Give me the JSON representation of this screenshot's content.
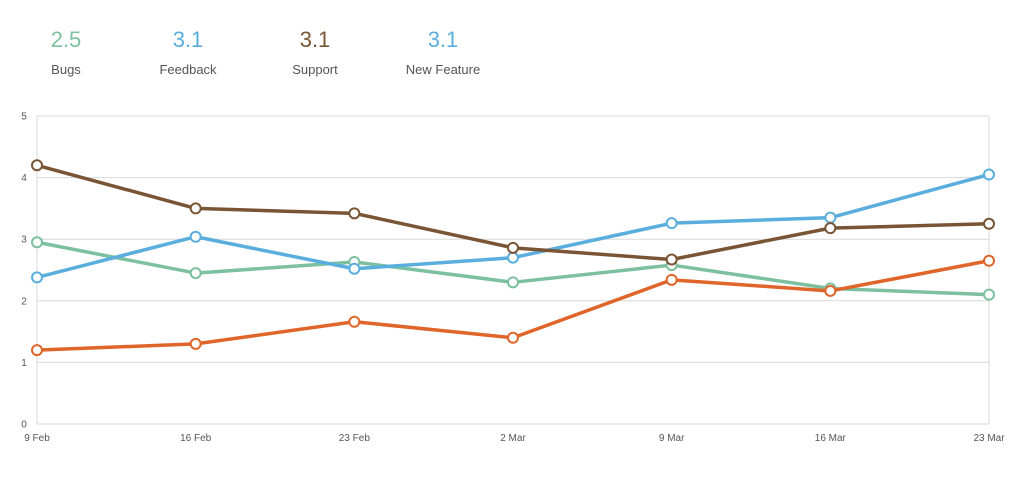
{
  "summary": [
    {
      "value": "2.5",
      "label": "Bugs",
      "color": "#7dc0a0"
    },
    {
      "value": "3.1",
      "label": "Feedback",
      "color": "#5aaedd"
    },
    {
      "value": "3.1",
      "label": "Support",
      "color": "#7a5535"
    },
    {
      "value": "3.1",
      "label": "New Feature",
      "color": "#5aaedd"
    }
  ],
  "chart_data": {
    "type": "line",
    "x": [
      "9 Feb",
      "16 Feb",
      "23 Feb",
      "2 Mar",
      "9 Mar",
      "16 Mar",
      "23 Mar"
    ],
    "yticks": [
      "0",
      "1",
      "2",
      "3",
      "4",
      "5"
    ],
    "ylim": [
      0,
      5
    ],
    "grid": true,
    "series": [
      {
        "color": "#7dc0a0",
        "values": [
          2.95,
          2.45,
          2.63,
          2.3,
          2.58,
          2.2,
          2.1
        ]
      },
      {
        "color": "#5aaedd",
        "values": [
          2.38,
          3.04,
          2.52,
          2.7,
          3.26,
          3.35,
          4.05
        ]
      },
      {
        "color": "#7a5535",
        "values": [
          4.2,
          3.5,
          3.42,
          2.86,
          2.67,
          3.18,
          3.25
        ]
      },
      {
        "color": "#e0652a",
        "values": [
          1.2,
          1.3,
          1.66,
          1.4,
          2.34,
          2.16,
          2.65
        ]
      }
    ]
  }
}
